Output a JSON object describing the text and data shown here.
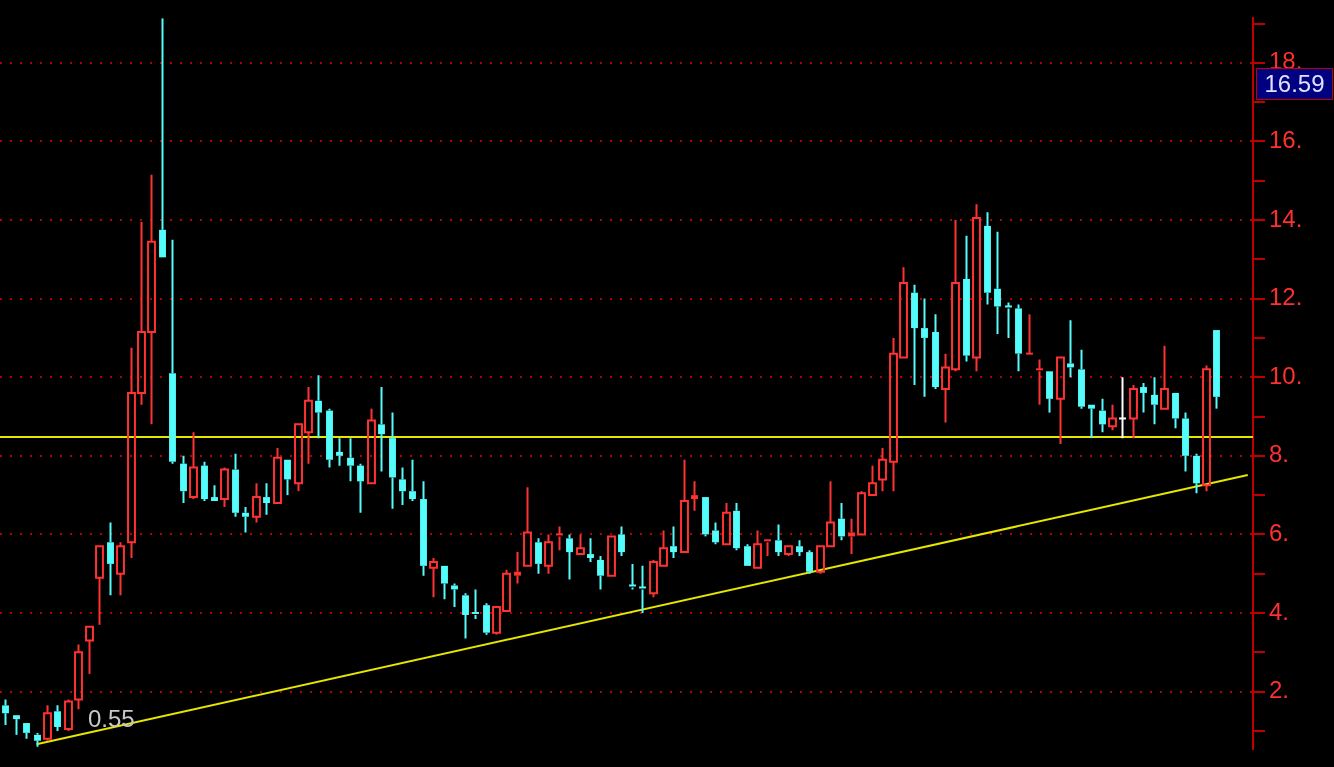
{
  "chart_data": {
    "type": "candlestick",
    "categories": [
      null,
      null,
      null,
      null,
      null,
      null,
      null,
      null,
      null,
      null,
      null,
      null,
      null,
      null,
      null,
      null,
      null,
      null,
      null,
      null,
      null,
      null,
      null,
      null,
      null,
      null,
      null,
      null,
      null,
      null,
      null,
      null,
      null,
      null,
      null,
      null,
      null,
      null,
      null,
      null,
      null,
      null,
      null,
      null,
      null,
      null,
      null,
      null,
      null,
      null,
      null,
      null,
      null,
      null,
      null,
      null,
      null,
      null,
      null,
      null,
      null,
      null,
      null,
      null,
      null,
      null,
      null,
      null,
      null,
      null,
      null,
      null,
      null,
      null,
      null,
      null,
      null,
      null,
      null,
      null,
      null,
      null,
      null,
      null,
      null,
      null,
      null,
      null,
      null,
      null,
      null,
      null,
      null,
      null,
      null,
      null,
      null,
      null,
      null,
      null,
      null,
      null,
      null,
      null,
      null,
      null,
      null,
      null,
      null,
      null,
      null,
      null,
      null,
      null,
      null,
      null,
      null,
      null,
      null,
      null
    ],
    "ohlc": [
      [
        1.65,
        1.8,
        1.15,
        1.45
      ],
      [
        1.4,
        1.4,
        0.9,
        1.3
      ],
      [
        1.2,
        1.2,
        0.8,
        0.95
      ],
      [
        0.9,
        0.95,
        0.6,
        0.75
      ],
      [
        0.8,
        1.65,
        0.75,
        1.45
      ],
      [
        1.5,
        1.65,
        1.0,
        1.1
      ],
      [
        1.05,
        1.8,
        1.0,
        1.75
      ],
      [
        1.8,
        3.2,
        1.55,
        3.0
      ],
      [
        3.3,
        3.65,
        2.45,
        3.65
      ],
      [
        4.9,
        5.7,
        3.7,
        5.7
      ],
      [
        5.8,
        6.3,
        4.45,
        5.25
      ],
      [
        5.0,
        5.8,
        4.45,
        5.7
      ],
      [
        5.8,
        10.75,
        5.4,
        9.6
      ],
      [
        9.6,
        13.95,
        9.3,
        11.15
      ],
      [
        11.15,
        15.15,
        8.8,
        13.45
      ],
      [
        13.75,
        19.13,
        13.05,
        13.05
      ],
      [
        10.1,
        13.5,
        7.8,
        7.85
      ],
      [
        7.8,
        8.0,
        6.8,
        7.1
      ],
      [
        6.95,
        8.6,
        6.9,
        7.7
      ],
      [
        7.75,
        7.85,
        6.85,
        6.9
      ],
      [
        6.95,
        7.25,
        6.85,
        6.85
      ],
      [
        6.9,
        7.7,
        6.7,
        7.65
      ],
      [
        7.65,
        8.05,
        6.45,
        6.55
      ],
      [
        6.55,
        6.7,
        6.05,
        6.45
      ],
      [
        6.45,
        7.3,
        6.3,
        6.95
      ],
      [
        6.95,
        7.3,
        6.5,
        6.8
      ],
      [
        6.8,
        8.2,
        6.8,
        7.95
      ],
      [
        7.9,
        7.9,
        7.0,
        7.4
      ],
      [
        7.3,
        8.8,
        7.1,
        8.8
      ],
      [
        8.6,
        9.75,
        7.8,
        9.4
      ],
      [
        9.4,
        10.05,
        8.45,
        9.1
      ],
      [
        9.15,
        9.2,
        7.7,
        7.9
      ],
      [
        8.1,
        8.45,
        7.75,
        8.0
      ],
      [
        7.95,
        8.45,
        7.35,
        7.75
      ],
      [
        7.75,
        7.8,
        6.55,
        7.35
      ],
      [
        7.3,
        9.2,
        7.3,
        8.9
      ],
      [
        8.8,
        9.75,
        7.6,
        8.55
      ],
      [
        8.45,
        9.1,
        6.65,
        7.45
      ],
      [
        7.4,
        7.7,
        6.75,
        7.1
      ],
      [
        7.1,
        7.9,
        6.85,
        6.9
      ],
      [
        6.9,
        7.35,
        4.95,
        5.2
      ],
      [
        5.15,
        5.4,
        4.4,
        5.3
      ],
      [
        5.2,
        5.2,
        4.35,
        4.75
      ],
      [
        4.7,
        4.75,
        4.15,
        4.6
      ],
      [
        4.45,
        4.5,
        3.35,
        3.95
      ],
      [
        4.0,
        4.6,
        3.85,
        3.95
      ],
      [
        4.2,
        4.25,
        3.45,
        3.5
      ],
      [
        3.5,
        4.15,
        3.45,
        4.15
      ],
      [
        4.05,
        5.1,
        4.05,
        5.0
      ],
      [
        4.95,
        5.55,
        4.75,
        5.05
      ],
      [
        5.2,
        7.2,
        5.2,
        6.05
      ],
      [
        5.8,
        5.9,
        5.0,
        5.25
      ],
      [
        5.2,
        6.0,
        5.0,
        5.8
      ],
      [
        5.95,
        6.2,
        5.6,
        6.0
      ],
      [
        5.9,
        6.0,
        4.85,
        5.55
      ],
      [
        5.5,
        6.0,
        5.5,
        5.65
      ],
      [
        5.5,
        5.9,
        5.3,
        5.4
      ],
      [
        5.35,
        5.45,
        4.6,
        4.95
      ],
      [
        4.95,
        5.95,
        4.95,
        5.95
      ],
      [
        6.0,
        6.2,
        5.45,
        5.55
      ],
      [
        4.7,
        5.25,
        4.6,
        4.65
      ],
      [
        4.65,
        5.2,
        4.0,
        4.6
      ],
      [
        4.5,
        5.35,
        4.4,
        5.3
      ],
      [
        5.2,
        6.1,
        5.2,
        5.65
      ],
      [
        5.7,
        6.2,
        5.4,
        5.55
      ],
      [
        5.55,
        7.9,
        5.55,
        6.85
      ],
      [
        6.9,
        7.35,
        6.6,
        7.0
      ],
      [
        6.95,
        6.95,
        5.95,
        6.0
      ],
      [
        6.1,
        6.3,
        5.75,
        5.8
      ],
      [
        5.75,
        6.8,
        5.75,
        6.55
      ],
      [
        6.6,
        6.8,
        5.6,
        5.65
      ],
      [
        5.7,
        5.75,
        5.2,
        5.2
      ],
      [
        5.15,
        6.1,
        5.15,
        5.75
      ],
      [
        5.8,
        5.85,
        5.45,
        5.85
      ],
      [
        5.85,
        6.25,
        5.45,
        5.55
      ],
      [
        5.5,
        5.7,
        5.45,
        5.7
      ],
      [
        5.7,
        5.85,
        5.45,
        5.55
      ],
      [
        5.55,
        5.6,
        5.0,
        5.05
      ],
      [
        5.05,
        5.7,
        5.0,
        5.7
      ],
      [
        5.7,
        7.35,
        5.7,
        6.3
      ],
      [
        6.4,
        6.8,
        5.85,
        5.95
      ],
      [
        5.95,
        6.4,
        5.5,
        6.05
      ],
      [
        6.0,
        7.1,
        6.0,
        7.05
      ],
      [
        7.0,
        7.75,
        7.0,
        7.3
      ],
      [
        7.4,
        8.2,
        7.1,
        7.9
      ],
      [
        7.85,
        11.0,
        7.1,
        10.6
      ],
      [
        10.5,
        12.8,
        10.5,
        12.4
      ],
      [
        12.15,
        12.35,
        9.8,
        11.25
      ],
      [
        11.25,
        12.0,
        9.5,
        11.0
      ],
      [
        11.15,
        11.6,
        9.7,
        9.75
      ],
      [
        9.7,
        10.6,
        8.85,
        10.25
      ],
      [
        10.2,
        14.0,
        10.15,
        12.4
      ],
      [
        12.5,
        13.6,
        10.4,
        10.55
      ],
      [
        10.5,
        14.4,
        10.15,
        14.05
      ],
      [
        13.85,
        14.2,
        11.85,
        12.15
      ],
      [
        12.25,
        13.7,
        11.1,
        11.8
      ],
      [
        11.8,
        11.9,
        11.0,
        11.75
      ],
      [
        11.75,
        11.85,
        10.15,
        10.6
      ],
      [
        10.55,
        11.6,
        10.55,
        10.6
      ],
      [
        10.15,
        10.45,
        9.3,
        10.2
      ],
      [
        10.15,
        10.15,
        9.1,
        9.45
      ],
      [
        9.45,
        10.5,
        8.3,
        10.5
      ],
      [
        10.35,
        11.45,
        10.0,
        10.25
      ],
      [
        10.2,
        10.7,
        9.2,
        9.25
      ],
      [
        9.3,
        9.3,
        8.45,
        9.2
      ],
      [
        9.15,
        9.45,
        8.6,
        8.8
      ],
      [
        8.75,
        9.3,
        8.65,
        8.95
      ],
      [
        8.95,
        10.0,
        8.45,
        8.95
      ],
      [
        8.95,
        9.8,
        8.45,
        9.7
      ],
      [
        9.75,
        9.85,
        9.1,
        9.6
      ],
      [
        9.55,
        10.0,
        8.8,
        9.3
      ],
      [
        9.2,
        10.8,
        9.2,
        9.7
      ],
      [
        9.6,
        9.6,
        8.7,
        8.95
      ],
      [
        8.95,
        9.1,
        7.6,
        8.0
      ],
      [
        8.0,
        8.05,
        7.05,
        7.3
      ],
      [
        7.25,
        10.3,
        7.1,
        10.2
      ],
      [
        11.2,
        11.2,
        9.2,
        9.5
      ],
      null,
      null,
      null
    ],
    "colors": [
      "#54fcfc",
      "#54fcfc",
      "#54fcfc",
      "#54fcfc",
      "#ff3232",
      "#54fcfc",
      "#ff3232",
      "#ff3232",
      "#ff3232",
      "#ff3232",
      "#54fcfc",
      "#ff3232",
      "#ff3232",
      "#ff3232",
      "#ff3232",
      "#54fcfc",
      "#54fcfc",
      "#54fcfc",
      "#ff3232",
      "#54fcfc",
      "#54fcfc",
      "#ff3232",
      "#54fcfc",
      "#54fcfc",
      "#ff3232",
      "#54fcfc",
      "#ff3232",
      "#54fcfc",
      "#ff3232",
      "#ff3232",
      "#54fcfc",
      "#54fcfc",
      "#54fcfc",
      "#54fcfc",
      "#54fcfc",
      "#ff3232",
      "#54fcfc",
      "#54fcfc",
      "#54fcfc",
      "#54fcfc",
      "#54fcfc",
      "#ff3232",
      "#54fcfc",
      "#54fcfc",
      "#54fcfc",
      "#54fcfc",
      "#54fcfc",
      "#ff3232",
      "#ff3232",
      "#ff3232",
      "#ff3232",
      "#54fcfc",
      "#ff3232",
      "#ff3232",
      "#54fcfc",
      "#ff3232",
      "#54fcfc",
      "#54fcfc",
      "#ff3232",
      "#54fcfc",
      "#54fcfc",
      "#54fcfc",
      "#ff3232",
      "#ff3232",
      "#54fcfc",
      "#ff3232",
      "#ff3232",
      "#54fcfc",
      "#54fcfc",
      "#ff3232",
      "#54fcfc",
      "#54fcfc",
      "#ff3232",
      "#ff3232",
      "#54fcfc",
      "#ff3232",
      "#54fcfc",
      "#54fcfc",
      "#ff3232",
      "#ff3232",
      "#54fcfc",
      "#ff3232",
      "#ff3232",
      "#ff3232",
      "#ff3232",
      "#ff3232",
      "#ff3232",
      "#54fcfc",
      "#54fcfc",
      "#54fcfc",
      "#ff3232",
      "#ff3232",
      "#54fcfc",
      "#ff3232",
      "#54fcfc",
      "#54fcfc",
      "#54fcfc",
      "#54fcfc",
      "#ff3232",
      "#ff3232",
      "#54fcfc",
      "#ff3232",
      "#54fcfc",
      "#54fcfc",
      "#54fcfc",
      "#54fcfc",
      "#ff3232",
      "#ffffff",
      "#ff3232",
      "#54fcfc",
      "#54fcfc",
      "#ff3232",
      "#54fcfc",
      "#54fcfc",
      "#54fcfc",
      "#ff3232",
      "#54fcfc",
      null,
      null,
      null
    ],
    "series": [
      {
        "type": "line",
        "color": "#e6e600",
        "values": [
          null,
          null,
          null,
          0.66,
          null,
          null,
          null,
          null,
          null,
          null,
          null,
          null,
          null,
          null,
          null,
          null,
          null,
          null,
          null,
          null,
          null,
          null,
          null,
          null,
          null,
          null,
          null,
          null,
          null,
          null,
          null,
          null,
          null,
          null,
          null,
          null,
          null,
          null,
          null,
          null,
          null,
          null,
          null,
          null,
          null,
          null,
          null,
          null,
          null,
          null,
          null,
          null,
          null,
          null,
          null,
          null,
          null,
          null,
          null,
          null,
          null,
          null,
          null,
          null,
          null,
          null,
          null,
          null,
          null,
          null,
          null,
          null,
          null,
          null,
          null,
          null,
          null,
          null,
          null,
          null,
          null,
          null,
          null,
          null,
          null,
          null,
          null,
          null,
          null,
          null,
          null,
          null,
          null,
          null,
          null,
          null,
          null,
          null,
          null,
          null,
          null,
          null,
          null,
          null,
          null,
          null,
          null,
          null,
          null,
          null,
          null,
          null,
          null,
          null,
          null,
          null,
          null,
          null,
          null,
          7.51
        ]
      }
    ],
    "ref_lines": [
      {
        "axis": "y",
        "value": 8.48,
        "color": "#e6e600"
      }
    ],
    "ylim": [
      0.55,
      19.13
    ],
    "yticks": [
      {
        "value": 1,
        "label": null
      },
      {
        "value": 2,
        "label": "2."
      },
      {
        "value": 3,
        "label": null
      },
      {
        "value": 4,
        "label": "4."
      },
      {
        "value": 5,
        "label": null
      },
      {
        "value": 6,
        "label": "6."
      },
      {
        "value": 7,
        "label": null
      },
      {
        "value": 8,
        "label": "8."
      },
      {
        "value": 9,
        "label": null
      },
      {
        "value": 10,
        "label": "10."
      },
      {
        "value": 11,
        "label": null
      },
      {
        "value": 12,
        "label": "12."
      },
      {
        "value": 13,
        "label": null
      },
      {
        "value": 14,
        "label": "14."
      },
      {
        "value": 15,
        "label": null
      },
      {
        "value": 16,
        "label": "16."
      },
      {
        "value": 17,
        "label": null
      },
      {
        "value": 18,
        "label": "18."
      },
      {
        "value": 19,
        "label": null
      }
    ],
    "grid": "y",
    "tick_labels": "y",
    "annotations": [
      "16.59",
      "0.55"
    ]
  }
}
